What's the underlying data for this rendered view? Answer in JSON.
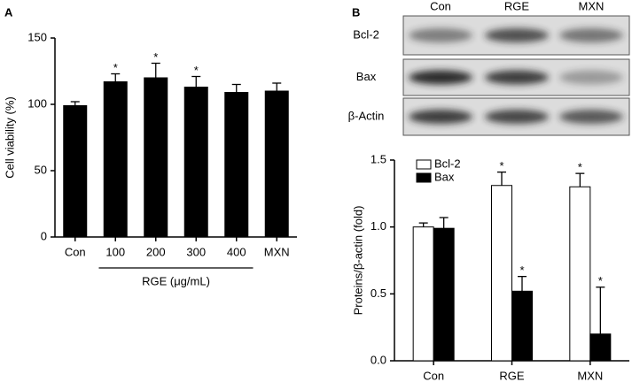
{
  "chart_data": [
    {
      "type": "bar",
      "panel": "A",
      "ylabel": "Cell viability (%)",
      "categories": [
        "Con",
        "100",
        "200",
        "300",
        "400",
        "MXN"
      ],
      "group_label": "RGE (μg/mL)",
      "series": [
        {
          "color": "#000000",
          "values": [
            99,
            117,
            120,
            113,
            109,
            110
          ],
          "errors": [
            3,
            6,
            11,
            8,
            6,
            6
          ],
          "annotations": [
            null,
            "*",
            "*",
            "*",
            null,
            null
          ]
        }
      ],
      "ylim": [
        0,
        150
      ],
      "yticks": [
        0,
        50,
        100,
        150
      ]
    },
    {
      "type": "bar",
      "panel": "B",
      "ylabel": "Proteins/β-actin (fold)",
      "categories": [
        "Con",
        "RGE",
        "MXN"
      ],
      "series": [
        {
          "name": "Bcl-2",
          "color": "#ffffff",
          "values": [
            1.0,
            1.31,
            1.3
          ],
          "errors": [
            0.03,
            0.1,
            0.1
          ],
          "annotations": [
            null,
            "*",
            "*"
          ]
        },
        {
          "name": "Bax",
          "color": "#000000",
          "values": [
            0.99,
            0.52,
            0.2
          ],
          "errors": [
            0.08,
            0.11,
            0.35
          ],
          "annotations": [
            null,
            "*",
            "*"
          ]
        }
      ],
      "ylim": [
        0,
        1.5
      ],
      "yticks": [
        {
          "value": 0,
          "label": "0.0"
        },
        {
          "value": 0.5,
          "label": "0.5"
        },
        {
          "value": 1.0,
          "label": "1.0"
        },
        {
          "value": 1.5,
          "label": "1.5"
        }
      ],
      "legend": "upper left"
    }
  ],
  "blot": {
    "lanes": [
      "Con",
      "RGE",
      "MXN"
    ],
    "rows": [
      "Bcl-2",
      "Bax",
      "β-Actin"
    ]
  }
}
